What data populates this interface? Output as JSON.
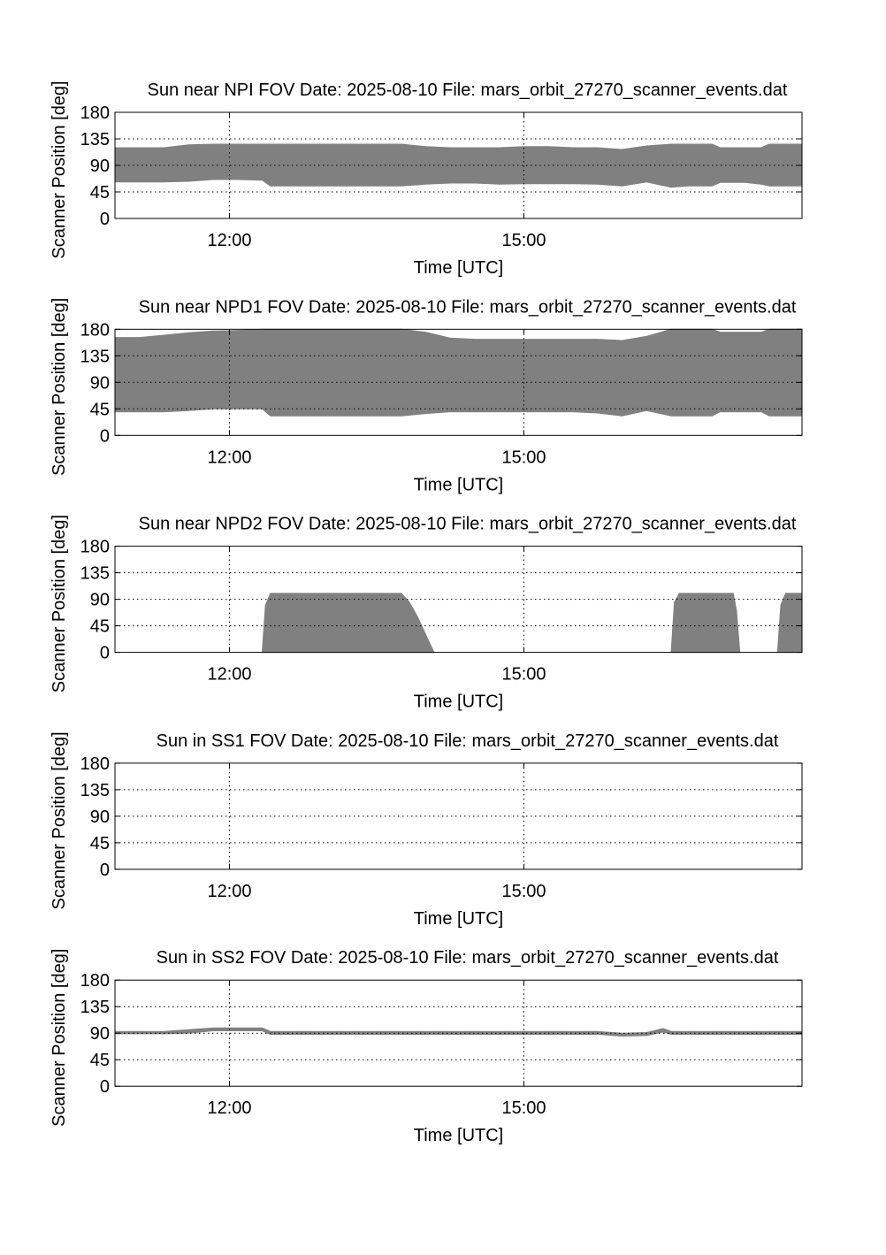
{
  "colors": {
    "fill": "#808080",
    "axis": "#000000",
    "background": "#ffffff"
  },
  "chart_data": [
    {
      "type": "area",
      "title": "Sun near NPI FOV   Date: 2025-08-10   File: mars_orbit_27270_scanner_events.dat",
      "xlabel": "Time [UTC]",
      "ylabel": "Scanner Position [deg]",
      "xlim": [
        "10:50",
        "17:50"
      ],
      "ylim": [
        0,
        180
      ],
      "yticks": [
        "0",
        "45",
        "90",
        "135",
        "180"
      ],
      "xticks": [
        "12:00",
        "15:00"
      ],
      "grid": true,
      "bands": [
        {
          "start": "10:50",
          "end": "17:50",
          "x": [
            "10:50",
            "11:05",
            "11:20",
            "11:35",
            "11:50",
            "12:05",
            "12:20",
            "12:25",
            "12:45",
            "13:00",
            "13:30",
            "13:45",
            "14:00",
            "14:15",
            "14:30",
            "14:45",
            "15:00",
            "15:15",
            "15:30",
            "15:45",
            "16:00",
            "16:15",
            "16:30",
            "16:40",
            "16:45",
            "16:55",
            "17:00",
            "17:15",
            "17:25",
            "17:30",
            "17:50"
          ],
          "lower": [
            62,
            62,
            62,
            63,
            66,
            66,
            65,
            55,
            55,
            55,
            55,
            55,
            58,
            60,
            60,
            58,
            59,
            59,
            59,
            58,
            55,
            62,
            53,
            55,
            55,
            55,
            61,
            61,
            58,
            55,
            55
          ],
          "upper": [
            120,
            120,
            120,
            125,
            126,
            126,
            126,
            126,
            126,
            126,
            126,
            126,
            122,
            120,
            120,
            120,
            122,
            122,
            120,
            120,
            117,
            123,
            126,
            126,
            126,
            126,
            120,
            120,
            120,
            126,
            126
          ]
        }
      ]
    },
    {
      "type": "area",
      "title": "Sun near NPD1 FOV   Date: 2025-08-10   File: mars_orbit_27270_scanner_events.dat",
      "xlabel": "Time [UTC]",
      "ylabel": "Scanner Position [deg]",
      "xlim": [
        "10:50",
        "17:50"
      ],
      "ylim": [
        0,
        180
      ],
      "yticks": [
        "0",
        "45",
        "90",
        "135",
        "180"
      ],
      "xticks": [
        "12:00",
        "15:00"
      ],
      "grid": true,
      "bands": [
        {
          "start": "10:50",
          "end": "17:50",
          "x": [
            "10:50",
            "11:05",
            "11:20",
            "11:35",
            "11:50",
            "12:05",
            "12:20",
            "12:25",
            "12:45",
            "13:00",
            "13:30",
            "13:45",
            "14:00",
            "14:15",
            "14:30",
            "14:45",
            "15:00",
            "15:15",
            "15:30",
            "15:45",
            "16:00",
            "16:15",
            "16:30",
            "16:40",
            "16:45",
            "16:55",
            "17:00",
            "17:15",
            "17:25",
            "17:30",
            "17:50"
          ],
          "lower": [
            40,
            40,
            40,
            42,
            45,
            45,
            45,
            33,
            33,
            33,
            33,
            33,
            37,
            40,
            40,
            40,
            40,
            40,
            40,
            38,
            33,
            42,
            33,
            33,
            33,
            33,
            40,
            40,
            40,
            33,
            33
          ],
          "upper": [
            166,
            166,
            170,
            174,
            177,
            178,
            180,
            180,
            180,
            180,
            180,
            180,
            175,
            165,
            163,
            163,
            163,
            163,
            163,
            163,
            161,
            168,
            180,
            180,
            180,
            180,
            175,
            175,
            175,
            180,
            180
          ]
        }
      ]
    },
    {
      "type": "area",
      "title": "Sun near NPD2 FOV   Date: 2025-08-10   File: mars_orbit_27270_scanner_events.dat",
      "xlabel": "Time [UTC]",
      "ylabel": "Scanner Position [deg]",
      "xlim": [
        "10:50",
        "17:50"
      ],
      "ylim": [
        0,
        180
      ],
      "yticks": [
        "0",
        "45",
        "90",
        "135",
        "180"
      ],
      "xticks": [
        "12:00",
        "15:00"
      ],
      "grid": true,
      "bands": [
        {
          "start": "12:20",
          "end": "14:05",
          "x": [
            "12:20",
            "12:22",
            "12:25",
            "13:00",
            "13:30",
            "13:45",
            "13:50",
            "13:55",
            "14:00",
            "14:05"
          ],
          "lower": [
            0,
            0,
            0,
            0,
            0,
            0,
            0,
            0,
            0,
            0
          ],
          "upper": [
            0,
            80,
            100,
            100,
            100,
            100,
            85,
            60,
            30,
            0
          ]
        },
        {
          "start": "16:30",
          "end": "17:12",
          "x": [
            "16:30",
            "16:32",
            "16:35",
            "16:55",
            "17:08",
            "17:10",
            "17:12"
          ],
          "lower": [
            0,
            0,
            0,
            0,
            0,
            0,
            0
          ],
          "upper": [
            0,
            85,
            100,
            100,
            100,
            70,
            0
          ]
        },
        {
          "start": "17:35",
          "end": "17:50",
          "x": [
            "17:35",
            "17:37",
            "17:40",
            "17:50"
          ],
          "lower": [
            0,
            0,
            0,
            0
          ],
          "upper": [
            0,
            80,
            100,
            100
          ]
        }
      ]
    },
    {
      "type": "area",
      "title": "Sun in SS1 FOV   Date: 2025-08-10   File: mars_orbit_27270_scanner_events.dat",
      "xlabel": "Time [UTC]",
      "ylabel": "Scanner Position [deg]",
      "xlim": [
        "10:50",
        "17:50"
      ],
      "ylim": [
        0,
        180
      ],
      "yticks": [
        "0",
        "45",
        "90",
        "135",
        "180"
      ],
      "xticks": [
        "12:00",
        "15:00"
      ],
      "grid": true,
      "bands": []
    },
    {
      "type": "area",
      "title": "Sun in SS2 FOV   Date: 2025-08-10   File: mars_orbit_27270_scanner_events.dat",
      "xlabel": "Time [UTC]",
      "ylabel": "Scanner Position [deg]",
      "xlim": [
        "10:50",
        "17:50"
      ],
      "ylim": [
        0,
        180
      ],
      "yticks": [
        "0",
        "45",
        "90",
        "135",
        "180"
      ],
      "xticks": [
        "12:00",
        "15:00"
      ],
      "grid": true,
      "bands": [
        {
          "start": "10:50",
          "end": "17:50",
          "x": [
            "10:50",
            "11:20",
            "11:35",
            "11:50",
            "12:20",
            "12:25",
            "13:00",
            "14:00",
            "15:00",
            "15:45",
            "16:00",
            "16:15",
            "16:25",
            "16:30",
            "16:45",
            "17:30",
            "17:50"
          ],
          "lower": [
            89,
            89,
            90,
            94,
            94,
            88,
            88,
            88,
            88,
            88,
            85,
            86,
            92,
            88,
            88,
            88,
            88
          ],
          "upper": [
            93,
            93,
            96,
            99,
            99,
            93,
            93,
            93,
            93,
            93,
            90,
            91,
            98,
            93,
            93,
            93,
            93
          ]
        }
      ]
    }
  ]
}
